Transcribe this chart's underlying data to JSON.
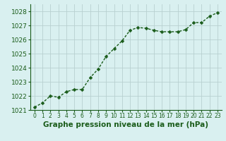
{
  "x": [
    0,
    1,
    2,
    3,
    4,
    5,
    6,
    7,
    8,
    9,
    10,
    11,
    12,
    13,
    14,
    15,
    16,
    17,
    18,
    19,
    20,
    21,
    22,
    23
  ],
  "y": [
    1021.2,
    1021.5,
    1022.0,
    1021.9,
    1022.3,
    1022.45,
    1022.45,
    1023.3,
    1023.9,
    1024.8,
    1025.35,
    1025.9,
    1026.65,
    1026.85,
    1026.8,
    1026.65,
    1026.55,
    1026.55,
    1026.55,
    1026.7,
    1027.2,
    1027.2,
    1027.65,
    1027.9
  ],
  "line_color": "#1a5c1a",
  "marker": "D",
  "marker_size": 2.5,
  "line_width": 1.0,
  "bg_color": "#d9f0f0",
  "grid_color": "#b8d0d0",
  "xlabel": "Graphe pression niveau de la mer (hPa)",
  "xlabel_fontsize": 7.5,
  "xlabel_color": "#1a5c1a",
  "ytick_fontsize": 6.5,
  "xtick_fontsize": 5.5,
  "tick_color": "#1a5c1a",
  "ylim": [
    1021.0,
    1028.5
  ],
  "xlim": [
    -0.5,
    23.5
  ],
  "yticks": [
    1021,
    1022,
    1023,
    1024,
    1025,
    1026,
    1027,
    1028
  ],
  "xticks": [
    0,
    1,
    2,
    3,
    4,
    5,
    6,
    7,
    8,
    9,
    10,
    11,
    12,
    13,
    14,
    15,
    16,
    17,
    18,
    19,
    20,
    21,
    22,
    23
  ]
}
